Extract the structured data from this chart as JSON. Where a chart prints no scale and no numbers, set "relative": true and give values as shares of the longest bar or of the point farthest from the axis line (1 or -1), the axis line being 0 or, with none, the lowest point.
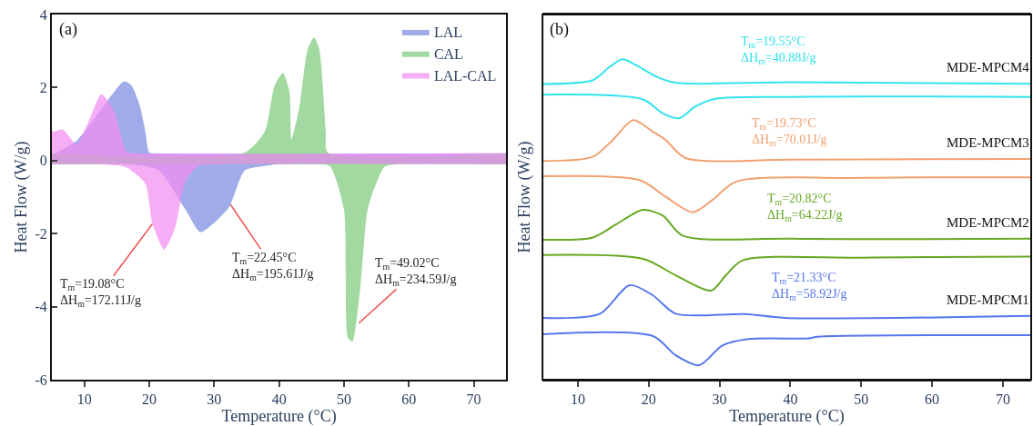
{
  "chart_data": [
    {
      "type": "area",
      "xlabel": "Temperature (°C)",
      "ylabel": "Heat Flow (W/g)",
      "xlim": [
        5,
        75
      ],
      "xticks": [
        10,
        20,
        30,
        40,
        50,
        60,
        70
      ],
      "ylim": [
        -6,
        4
      ],
      "yticks": [
        -6,
        -4,
        -2,
        0,
        2,
        4
      ],
      "legend": "top right",
      "annotations": [
        "(a)",
        {
          "text": "T$_{m}$=19.08°C\nΔH$_{m}$=172.11J/g",
          "x": 20.5,
          "y": -1.73
        },
        {
          "text": "T$_{m}$=22.45°C\nΔH$_{m}$=195.61J/g",
          "x": 32.5,
          "y": -1.2
        },
        {
          "text": "T$_{m}$=49.02°C\nΔH$_{m}$=234.59J/g",
          "x": 52.3,
          "y": -4.45
        }
      ],
      "series": [
        {
          "name": "LAL",
          "color": "#7b8be0",
          "x": [
            5,
            8.8,
            12.3,
            16.1,
            17.3,
            18.5,
            19.4,
            20,
            21,
            75
          ],
          "values": [
            0.15,
            0.54,
            1.33,
            2.17,
            2.05,
            1.53,
            0.8,
            0.22,
            0.2,
            0.2
          ]
        },
        {
          "color": "#7b8be0",
          "x": [
            5,
            17,
            21.5,
            25.6,
            27.9,
            32.2,
            34.7,
            37.8,
            40,
            75
          ],
          "values": [
            -0.1,
            -0.1,
            -0.27,
            -1.35,
            -1.96,
            -1.3,
            -0.27,
            -0.15,
            -0.1,
            -0.1
          ]
        },
        {
          "name": "CAL",
          "color": "#7dcb7d",
          "x": [
            5,
            34.7,
            37.8,
            39.3,
            40.6,
            41.6,
            41.9,
            43.1,
            44.4,
            45.4,
            46.2,
            47.2,
            47.5,
            75
          ],
          "values": [
            0.2,
            0.22,
            0.8,
            2.05,
            2.4,
            1.88,
            0.58,
            1.43,
            3.05,
            3.37,
            3.05,
            0.8,
            0.22,
            0.2
          ]
        },
        {
          "color": "#7dcb7d",
          "x": [
            5,
            45,
            47.8,
            50,
            50.6,
            51.3,
            52.5,
            53.7,
            56.2,
            58,
            75
          ],
          "values": [
            -0.1,
            -0.1,
            -0.15,
            -1.35,
            -4.85,
            -4.96,
            -3.5,
            -1.3,
            -0.18,
            -0.1,
            -0.1
          ]
        },
        {
          "name": "LAL-CAL",
          "color": "#f28ef2",
          "x": [
            5,
            5.4,
            6.7,
            8.8,
            10.5,
            12.6,
            14.4,
            16.6,
            18,
            75
          ],
          "values": [
            0.8,
            0.8,
            0.85,
            0.45,
            1.0,
            1.82,
            1.43,
            0.22,
            0.2,
            0.2
          ]
        },
        {
          "color": "#f28ef2",
          "x": [
            5,
            12,
            16.4,
            19.4,
            20.5,
            22.3,
            24,
            25.5,
            27.5,
            30,
            75
          ],
          "values": [
            -0.1,
            -0.1,
            -0.18,
            -0.63,
            -1.73,
            -2.44,
            -1.83,
            -0.6,
            -0.15,
            -0.1,
            -0.1
          ]
        }
      ]
    },
    {
      "type": "line",
      "relative": true,
      "tick_labels": "x",
      "xlabel": "Temperature (°C)",
      "ylabel": "Heat Flow (W/g)",
      "xlim": [
        5,
        74
      ],
      "xticks": [
        10,
        20,
        30,
        40,
        50,
        60,
        70
      ],
      "annotations": [
        "(b)",
        "T$_{m}$=19.55°C\nΔH$_{m}$=40.88J/g",
        "T$_{m}$=19.73°C\nΔH$_{m}$=70.01J/g",
        "T$_{m}$=20.82°C\nΔH$_{m}$=64.22J/g",
        "T$_{m}$=21.33°C\nΔH$_{m}$=58.92J/g"
      ],
      "series": [
        {
          "name": "MDE-MPCM4",
          "color": "#33e3ee",
          "x": [
            5,
            12.1,
            14.5,
            16.3,
            18.2,
            21,
            23.8,
            40,
            74
          ],
          "values": [
            0.923,
            0.935,
            0.977,
            1.0,
            0.982,
            0.947,
            0.927,
            0.929,
            0.924
          ]
        },
        {
          "color": "#33e3ee",
          "x": [
            5,
            19.2,
            22,
            24.3,
            26.6,
            29.4,
            40,
            74
          ],
          "values": [
            0.89,
            0.875,
            0.831,
            0.816,
            0.853,
            0.877,
            0.883,
            0.883
          ]
        },
        {
          "name": "MDE-MPCM3",
          "color": "#f2a070",
          "x": [
            5,
            12.1,
            14.9,
            17.8,
            20.6,
            22.4,
            25.2,
            40,
            74
          ],
          "values": [
            0.683,
            0.696,
            0.748,
            0.81,
            0.774,
            0.748,
            0.692,
            0.687,
            0.689
          ]
        },
        {
          "color": "#f2a070",
          "x": [
            5,
            18.7,
            22.4,
            26.2,
            29,
            32.3,
            50,
            74
          ],
          "values": [
            0.635,
            0.623,
            0.571,
            0.523,
            0.561,
            0.618,
            0.63,
            0.632
          ]
        },
        {
          "name": "MDE-MPCM2",
          "color": "#66aa22",
          "x": [
            5,
            12.1,
            15.4,
            19.2,
            22,
            24.8,
            40,
            74
          ],
          "values": [
            0.437,
            0.444,
            0.485,
            0.53,
            0.512,
            0.45,
            0.44,
            0.44
          ]
        },
        {
          "color": "#66aa22",
          "x": [
            5,
            19.2,
            23.8,
            28.8,
            30.9,
            33.2,
            50,
            74
          ],
          "values": [
            0.389,
            0.377,
            0.326,
            0.278,
            0.326,
            0.372,
            0.381,
            0.384
          ]
        },
        {
          "name": "MDE-MPCM1",
          "color": "#5577ee",
          "x": [
            5,
            13.1,
            17.3,
            20.6,
            23.8,
            33.6,
            39.2,
            74
          ],
          "values": [
            0.193,
            0.206,
            0.295,
            0.263,
            0.206,
            0.205,
            0.193,
            0.199
          ]
        },
        {
          "color": "#5577ee",
          "x": [
            5,
            20.6,
            23.8,
            27.1,
            30.4,
            34.1,
            42.6,
            43.8,
            74
          ],
          "values": [
            0.142,
            0.136,
            0.076,
            0.045,
            0.107,
            0.127,
            0.129,
            0.134,
            0.139
          ]
        }
      ]
    }
  ]
}
